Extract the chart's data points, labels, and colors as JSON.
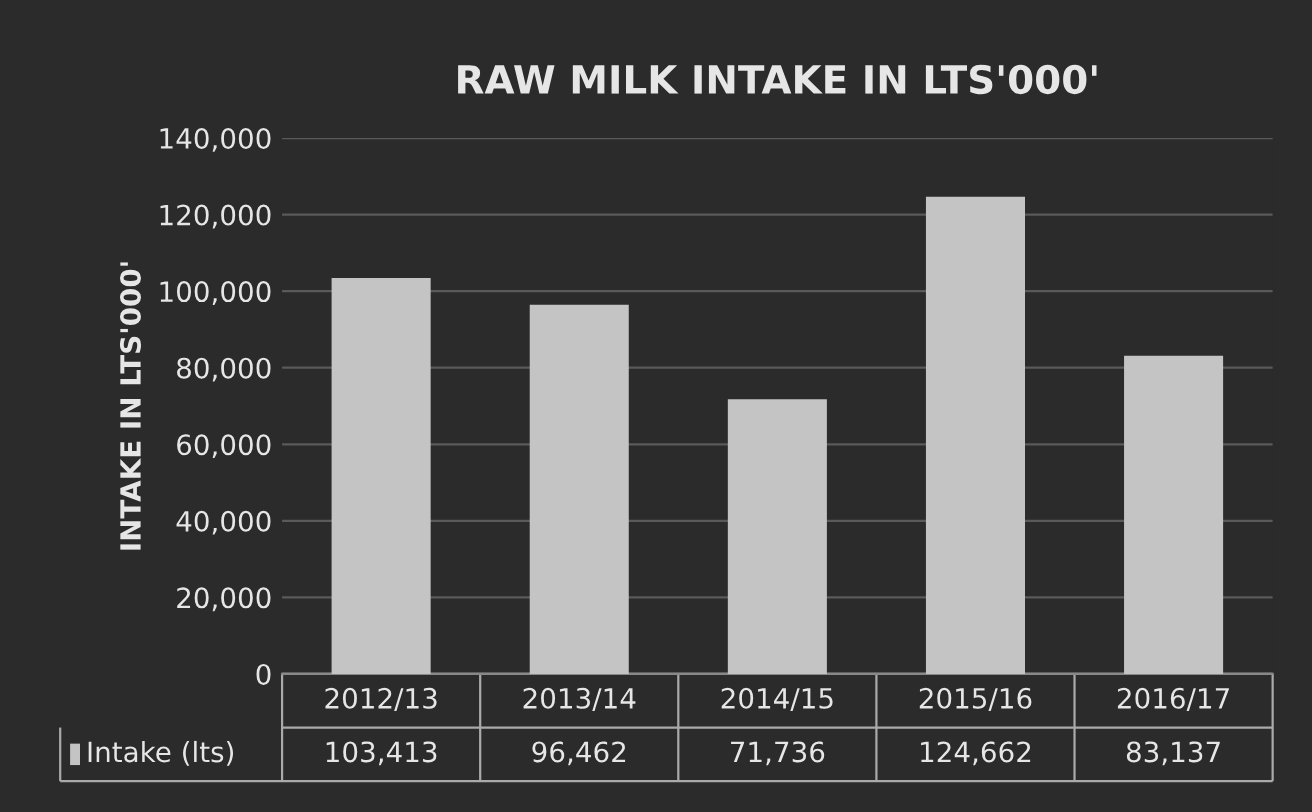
{
  "chart_data": {
    "type": "bar",
    "title": "RAW MILK INTAKE IN LTS'000'",
    "ylabel": "INTAKE IN LTS'000'",
    "categories": [
      "2012/13",
      "2013/14",
      "2014/15",
      "2015/16",
      "2016/17"
    ],
    "series": [
      {
        "name": "Intake (lts)",
        "color": "#c4c4c4",
        "values": [
          103413,
          96462,
          71736,
          124662,
          83137
        ],
        "value_labels": [
          "103,413",
          "96,462",
          "71,736",
          "124,662",
          "83,137"
        ]
      }
    ],
    "ylim": [
      0,
      140000
    ],
    "yticks": [
      0,
      {
        "value": 20000,
        "label": "20,000"
      },
      {
        "value": 40000,
        "label": "40,000"
      },
      {
        "value": 60000,
        "label": "60,000"
      },
      {
        "value": 80000,
        "label": "80,000"
      },
      {
        "value": 100000,
        "label": "100,000"
      },
      {
        "value": 120000,
        "label": "120,000"
      },
      {
        "value": 140000,
        "label": "140,000"
      }
    ],
    "grid": "y",
    "legend": "bottom"
  }
}
